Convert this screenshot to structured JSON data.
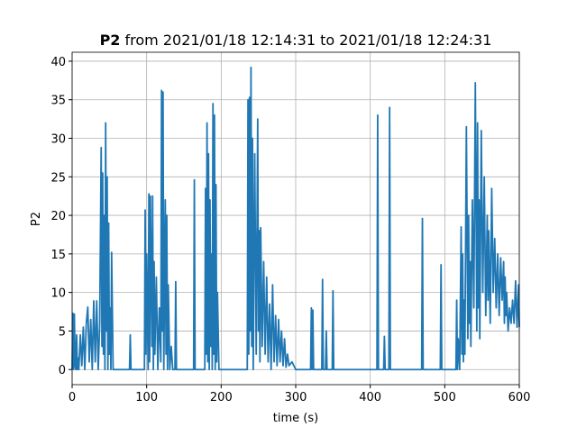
{
  "chart_data": {
    "type": "line",
    "title_bold": "P2",
    "title": "from 2021/01/18 12:14:31 to 2021/01/18 12:24:31",
    "xlabel": "time (s)",
    "ylabel": "P2",
    "xlim": [
      0,
      600
    ],
    "ylim": [
      -1.96,
      41.16
    ],
    "xticks": [
      0,
      100,
      200,
      300,
      400,
      500,
      600
    ],
    "yticks": [
      0,
      5,
      10,
      15,
      20,
      25,
      30,
      35,
      40
    ],
    "grid": true,
    "x": [
      0,
      1,
      2,
      3,
      4,
      5,
      6,
      7,
      8,
      9,
      11,
      13,
      15,
      17,
      19,
      21,
      23,
      25,
      27,
      29,
      31,
      33,
      35,
      37,
      39,
      40,
      41,
      42,
      43,
      44,
      45,
      46,
      47,
      48,
      49,
      50,
      51,
      52,
      53,
      55,
      77,
      78,
      79,
      80,
      97,
      98,
      99,
      100,
      102,
      103,
      104,
      105,
      107,
      108,
      109,
      110,
      111,
      113,
      115,
      117,
      119,
      120,
      121,
      122,
      123,
      125,
      126,
      127,
      128,
      129,
      131,
      133,
      135,
      138,
      139,
      140,
      163,
      164,
      165,
      166,
      178,
      179,
      180,
      181,
      182,
      183,
      184,
      185,
      186,
      187,
      188,
      189,
      190,
      191,
      192,
      193,
      194,
      195,
      197,
      199,
      235,
      236,
      237,
      238,
      239,
      240,
      241,
      242,
      243,
      245,
      247,
      249,
      250,
      251,
      252,
      253,
      255,
      257,
      259,
      261,
      263,
      265,
      267,
      269,
      271,
      273,
      275,
      277,
      279,
      281,
      283,
      285,
      287,
      289,
      291,
      295,
      300,
      320,
      321,
      322,
      323,
      324,
      330,
      335,
      336,
      337,
      340,
      341,
      342,
      343,
      349,
      350,
      351,
      352,
      409,
      410,
      411,
      412,
      418,
      419,
      420,
      421,
      425,
      426,
      427,
      428,
      469,
      470,
      471,
      494,
      495,
      496,
      497,
      515,
      516,
      517,
      518,
      520,
      522,
      523,
      524,
      525,
      526,
      527,
      529,
      531,
      532,
      533,
      534,
      535,
      537,
      539,
      541,
      543,
      544,
      545,
      546,
      547,
      549,
      551,
      553,
      555,
      557,
      558,
      559,
      561,
      563,
      565,
      567,
      569,
      571,
      573,
      575,
      577,
      579,
      580,
      581,
      582,
      583,
      585,
      587,
      589,
      591,
      593,
      595,
      597,
      599,
      600
    ],
    "series": [
      {
        "name": "P2",
        "color": "#1f77b4",
        "values": [
          0,
          7.3,
          0,
          7.2,
          0.5,
          0,
          4.5,
          0,
          1.5,
          0,
          4.5,
          0.5,
          5.5,
          0,
          6,
          8.1,
          1,
          6.5,
          0,
          8.9,
          1,
          8.9,
          0,
          6,
          28.8,
          3,
          25.5,
          2,
          20,
          0,
          32,
          5,
          25,
          0,
          19,
          2,
          8,
          0,
          15.2,
          0,
          0,
          4.5,
          0,
          0,
          0,
          20.7,
          2,
          15,
          0,
          22.8,
          1,
          22.5,
          3,
          22.5,
          0,
          14,
          2,
          12,
          0,
          8,
          1,
          36.2,
          5,
          36,
          0,
          22,
          2,
          20,
          0,
          11,
          0,
          3,
          0,
          0,
          11.4,
          0,
          0,
          24.6,
          0,
          0,
          0,
          23.5,
          2,
          32,
          1,
          28,
          0,
          22,
          3,
          15,
          0,
          34.5,
          2,
          33,
          0,
          24,
          1,
          10,
          0,
          0,
          0,
          35,
          2,
          35.3,
          5,
          39.2,
          3,
          30,
          0,
          28,
          2,
          32.5,
          5,
          18,
          1,
          18.4,
          3,
          14,
          2,
          12,
          1,
          8.5,
          0,
          11,
          1,
          7,
          0.5,
          6.5,
          1,
          5,
          0.5,
          4,
          0.3,
          2,
          0.5,
          1,
          0,
          0,
          8,
          0,
          7.7,
          0,
          0,
          0,
          11.7,
          0,
          0,
          5,
          0,
          0,
          0,
          10.2,
          0,
          0,
          0,
          33,
          0,
          0,
          0,
          4.3,
          0,
          0,
          0,
          34,
          0,
          0,
          0,
          19.6,
          0,
          0,
          13.6,
          0,
          0,
          0,
          9,
          0,
          4,
          0,
          18.5,
          2,
          15,
          1,
          9,
          2,
          31.5,
          4,
          20,
          6,
          14,
          3,
          22,
          8,
          37.2,
          5,
          32,
          8,
          22,
          4,
          31,
          10,
          25,
          7,
          20,
          9,
          18,
          6,
          23.5,
          10,
          17,
          8,
          15,
          7,
          14.5,
          9,
          14,
          6,
          12,
          7,
          10,
          5,
          8,
          6,
          9,
          6,
          11.5,
          5.5,
          11,
          5.5
        ]
      }
    ]
  }
}
